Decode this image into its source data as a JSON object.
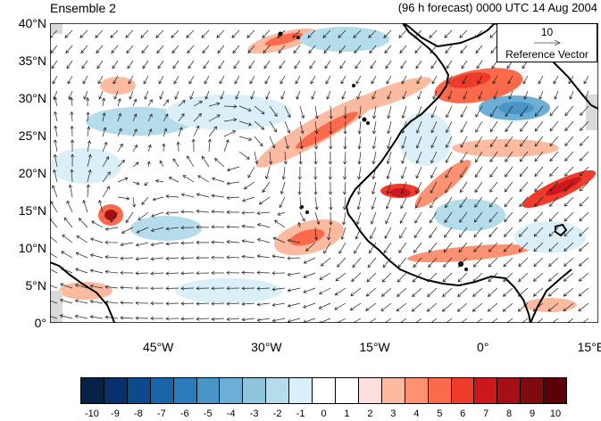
{
  "header": {
    "title_left": "Ensemble 2",
    "title_right": "(96 h forecast) 0000 UTC 14 Aug 2004"
  },
  "axes": {
    "lat_labels": [
      "40°N",
      "35°N",
      "30°N",
      "25°N",
      "20°N",
      "15°N",
      "10°N",
      "5°N",
      "0°"
    ],
    "lon_labels": [
      "45°W",
      "30°W",
      "15°W",
      "0°",
      "15°E"
    ]
  },
  "map": {
    "lon_range": [
      -60,
      16
    ],
    "lat_range": [
      0,
      40
    ]
  },
  "reference_vector": {
    "value": "10",
    "label": "Reference Vector"
  },
  "colorbar": {
    "labels": [
      "-10",
      "-9",
      "-8",
      "-7",
      "-6",
      "-5",
      "-4",
      "-3",
      "-2",
      "-1",
      "0",
      "1",
      "2",
      "3",
      "4",
      "5",
      "6",
      "7",
      "8",
      "9",
      "10"
    ],
    "colors": [
      "#0a2147",
      "#08306b",
      "#0d4a8c",
      "#1a65a8",
      "#2b7bba",
      "#4a94c7",
      "#6baed6",
      "#8fc6de",
      "#b5dcea",
      "#dbeff8",
      "#ffffff",
      "#ffffff",
      "#fde0dd",
      "#fcbba1",
      "#fc9272",
      "#fb6a4a",
      "#ef3b2c",
      "#cb181d",
      "#a50f15",
      "#7f0a10",
      "#5a0008"
    ]
  }
}
